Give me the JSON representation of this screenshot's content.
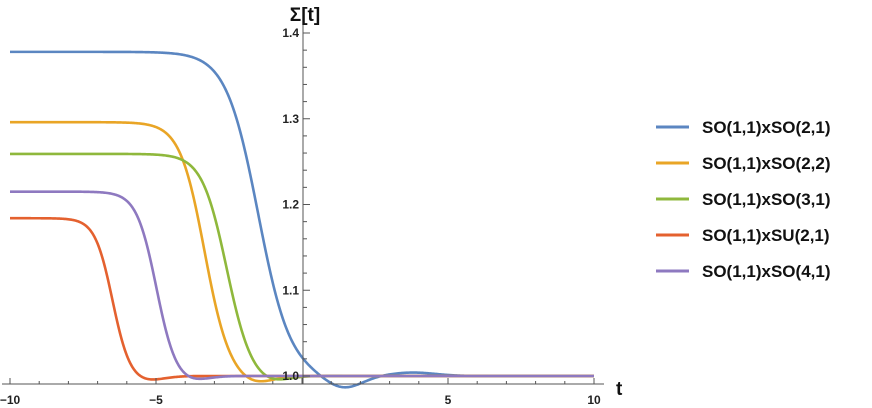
{
  "chart_data": {
    "type": "line",
    "title": "",
    "xlabel": "t",
    "ylabel": "Σ[t]",
    "xlim": [
      -10,
      10
    ],
    "ylim": [
      0.99,
      1.4
    ],
    "x_ticks": [
      -10,
      -5,
      5,
      10
    ],
    "x_tick_labels": [
      "−10",
      "−5",
      "5",
      "10"
    ],
    "y_ticks": [
      1.0,
      1.1,
      1.2,
      1.3,
      1.4
    ],
    "y_tick_labels": [
      "1.0",
      "1.1",
      "1.2",
      "1.3",
      "1.4"
    ],
    "grid": false,
    "legend_position": "right",
    "series": [
      {
        "name": "SO(1,1)xSO(2,1)",
        "color": "#5b86c1",
        "start": 1.378,
        "center": -1.5,
        "width": 0.55,
        "undershoot": 0.015,
        "undershoot_at": 1.4,
        "overshoot": 0.004,
        "overshoot_at": 3.8
      },
      {
        "name": "SO(1,1)xSO(2,2)",
        "color": "#e9a526",
        "start": 1.296,
        "center": -3.35,
        "width": 0.42,
        "undershoot": 0.01,
        "undershoot_at": -1.7,
        "overshoot": 0.0,
        "overshoot_at": 0
      },
      {
        "name": "SO(1,1)xSO(3,1)",
        "color": "#8fb83c",
        "start": 1.259,
        "center": -2.6,
        "width": 0.42,
        "undershoot": 0.009,
        "undershoot_at": -1.2,
        "overshoot": 0.0,
        "overshoot_at": 0
      },
      {
        "name": "SO(1,1)xSU(2,1)",
        "color": "#e4612f",
        "start": 1.184,
        "center": -6.5,
        "width": 0.3,
        "undershoot": 0.007,
        "undershoot_at": -5.5,
        "overshoot": 0.0,
        "overshoot_at": 0
      },
      {
        "name": "SO(1,1)xSO(4,1)",
        "color": "#8e79c0",
        "start": 1.215,
        "center": -5.0,
        "width": 0.34,
        "undershoot": 0.008,
        "undershoot_at": -4.0,
        "overshoot": 0.0,
        "overshoot_at": 0
      }
    ]
  }
}
